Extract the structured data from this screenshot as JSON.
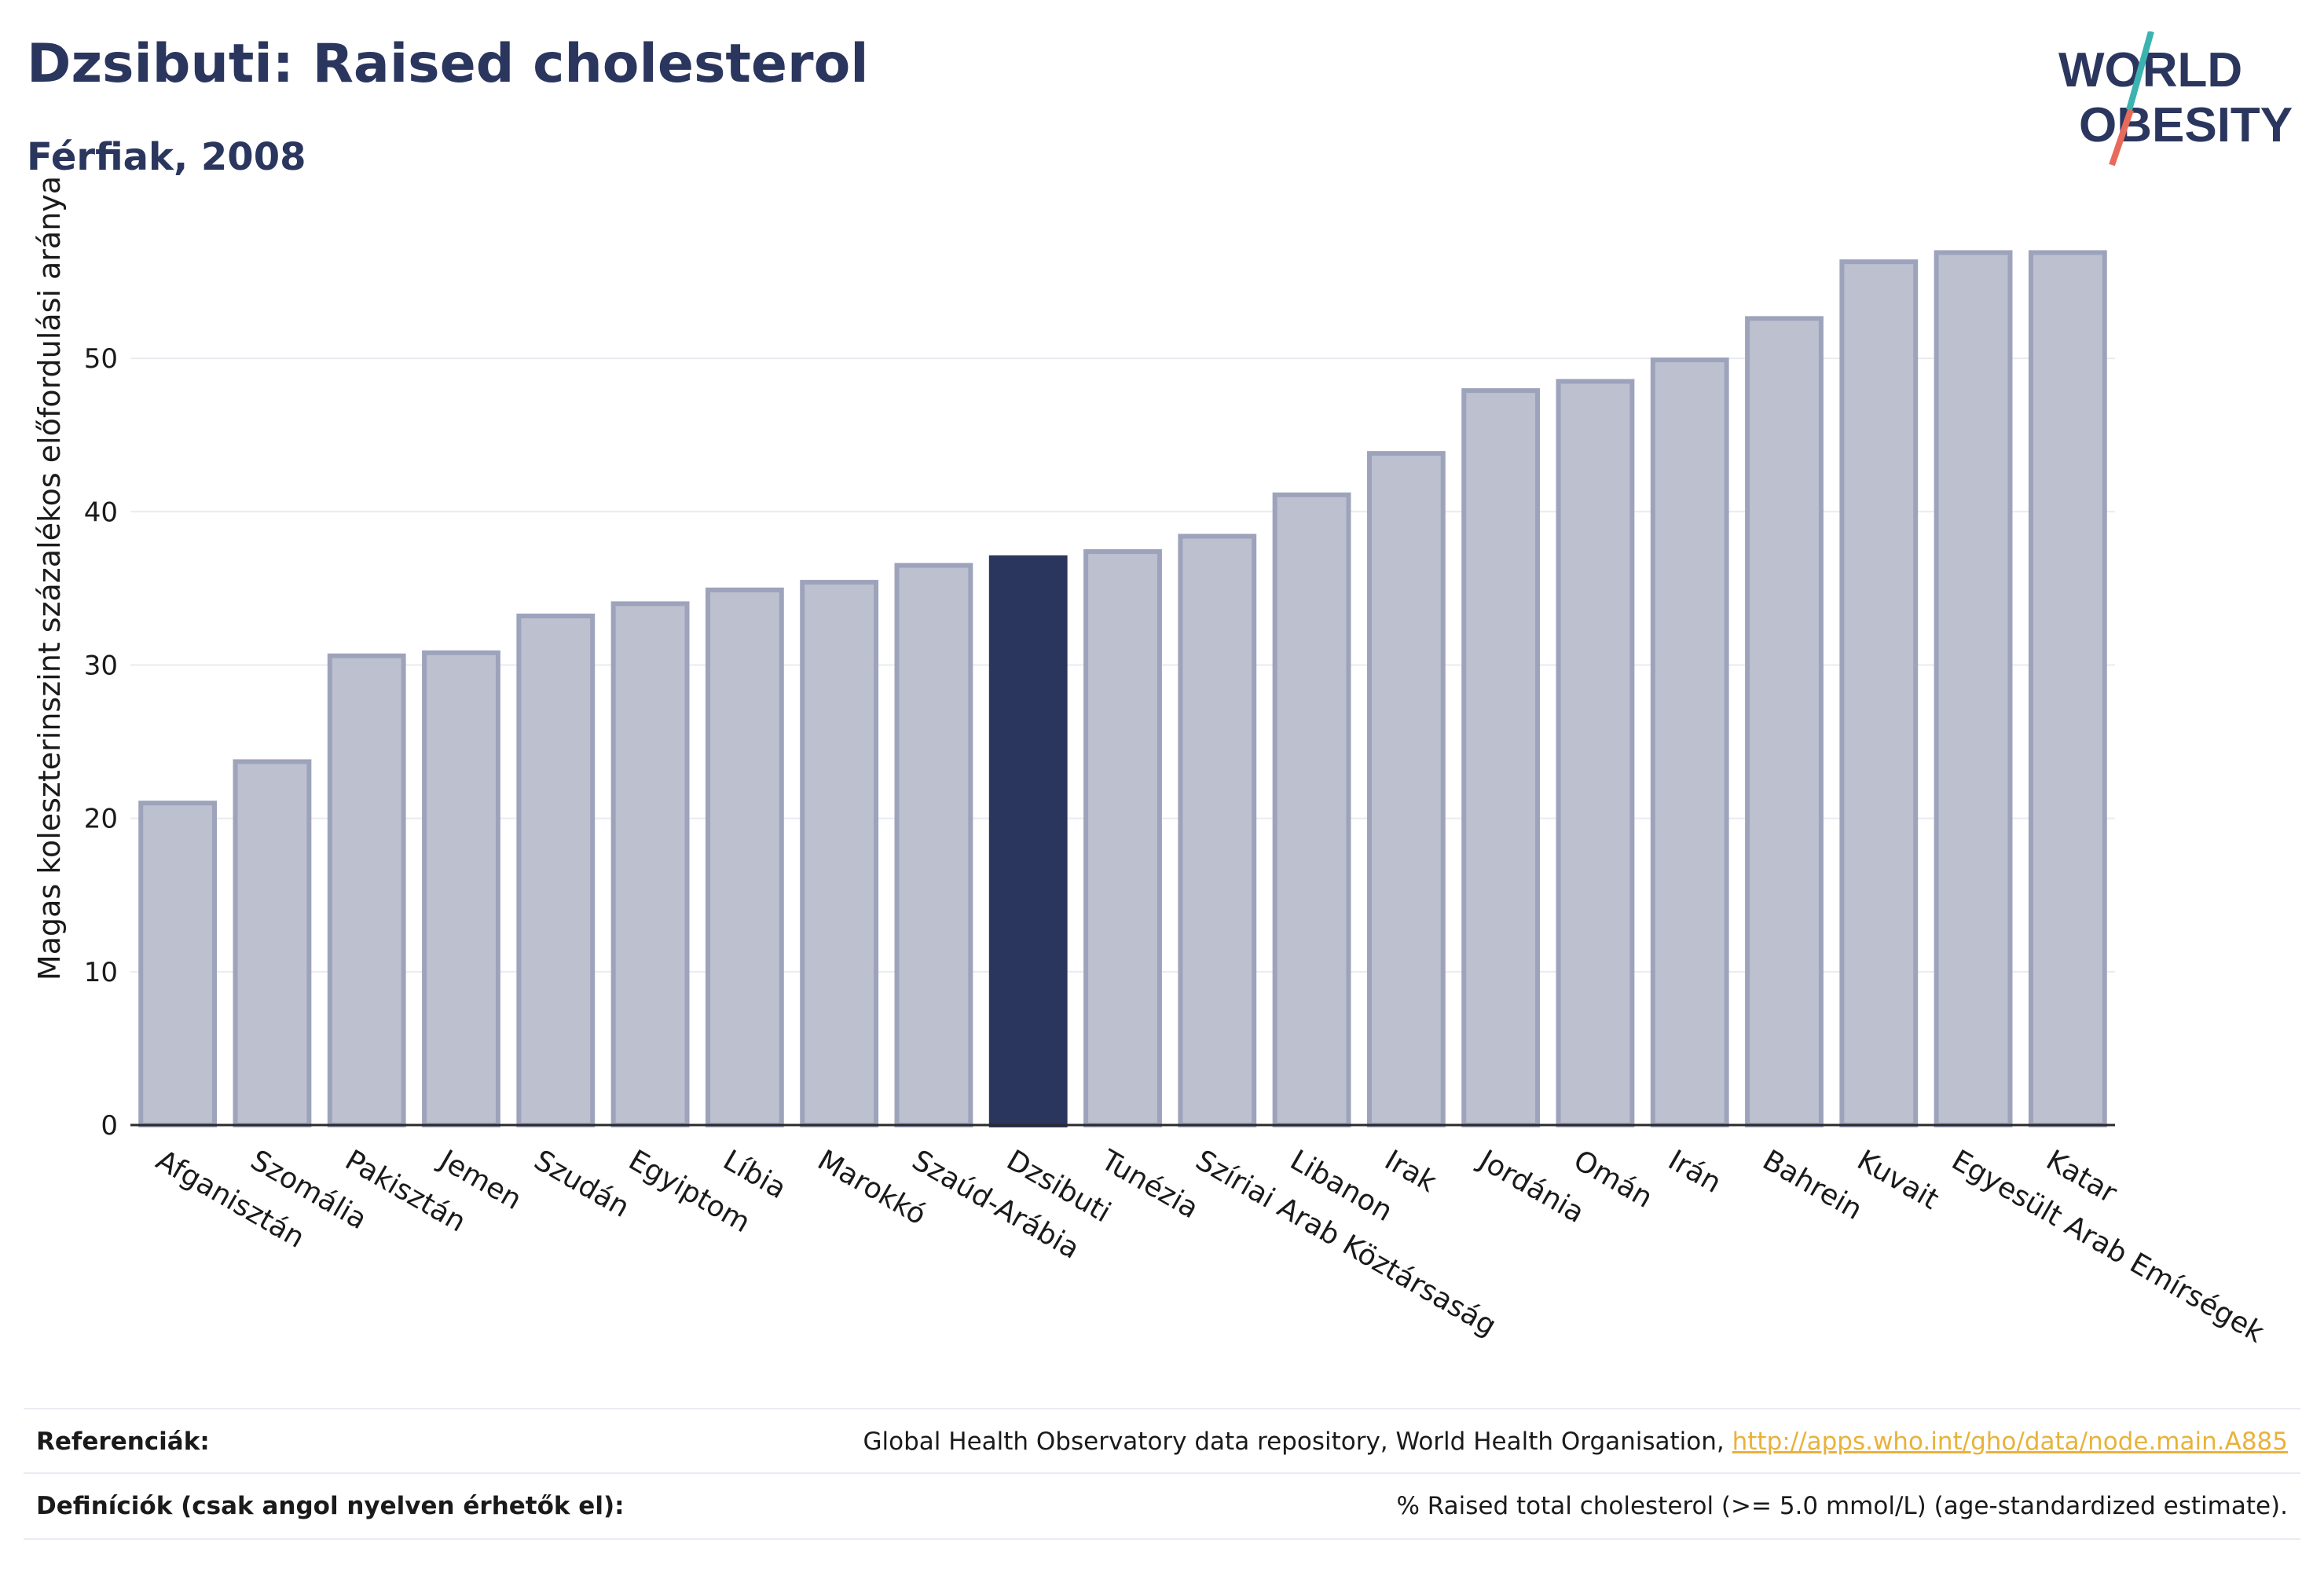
{
  "header": {
    "title": "Dzsibuti: Raised cholesterol",
    "subtitle": "Férfiak, 2008"
  },
  "logo": {
    "line1": "WORLD",
    "line2": "OBESITY"
  },
  "colors": {
    "highlight": "#2b365e",
    "bar_fill": "#bcc0cf",
    "bar_stroke": "#9da3bb",
    "grid": "#e9ebf0",
    "logo_slash_top": "#3bb3b0",
    "logo_slash_bottom": "#e86a5a"
  },
  "chart_data": {
    "type": "bar",
    "ylabel": "Magas koleszterinszint százalékos előfordulási aránya",
    "xlabel": "",
    "ylim": [
      0,
      58
    ],
    "yticks": [
      0,
      10,
      20,
      30,
      40,
      50
    ],
    "grid": true,
    "highlight": "Dzsibuti",
    "categories": [
      "Afganisztán",
      "Szomália",
      "Pakisztán",
      "Jemen",
      "Szudán",
      "Egyiptom",
      "Líbia",
      "Marokkó",
      "Szaúd-Arábia",
      "Dzsibuti",
      "Tunézia",
      "Szíriai Arab Köztársaság",
      "Libanon",
      "Irak",
      "Jordánia",
      "Omán",
      "Irán",
      "Bahrein",
      "Kuvait",
      "Egyesült Arab Emírségek",
      "Katar"
    ],
    "values": [
      21.0,
      23.7,
      30.6,
      30.8,
      33.2,
      34.0,
      34.9,
      35.4,
      36.5,
      37.0,
      37.4,
      38.4,
      41.1,
      43.8,
      47.9,
      48.5,
      49.9,
      52.6,
      56.3,
      56.9,
      56.9
    ]
  },
  "references": {
    "ref_label": "Referenciák:",
    "ref_text": "Global Health Observatory data repository, World Health Organisation,",
    "ref_link": "http://apps.who.int/gho/data/node.main.A885",
    "def_label": "Definíciók (csak angol nyelven érhetők el):",
    "def_text": "% Raised total cholesterol (>= 5.0 mmol/L) (age-standardized estimate)."
  }
}
